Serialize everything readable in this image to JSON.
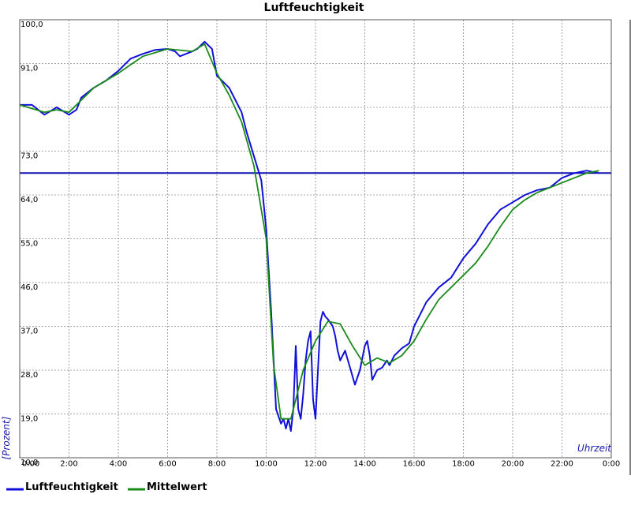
{
  "chart_data": {
    "type": "line",
    "title": "Luftfeuchtigkeit",
    "xlabel": "Uhrzeit",
    "ylabel": "[Prozent]",
    "x_unit": "hours",
    "xlim": [
      0,
      24
    ],
    "ylim": [
      10,
      100
    ],
    "x_ticks": [
      {
        "value": 0,
        "label": "0:00"
      },
      {
        "value": 2,
        "label": "2:00"
      },
      {
        "value": 4,
        "label": "4:00"
      },
      {
        "value": 6,
        "label": "6:00"
      },
      {
        "value": 8,
        "label": "8:00"
      },
      {
        "value": 10,
        "label": "10:00"
      },
      {
        "value": 12,
        "label": "12:00"
      },
      {
        "value": 14,
        "label": "14:00"
      },
      {
        "value": 16,
        "label": "16:00"
      },
      {
        "value": 18,
        "label": "18:00"
      },
      {
        "value": 20,
        "label": "20:00"
      },
      {
        "value": 22,
        "label": "22:00"
      },
      {
        "value": 24,
        "label": "0:00"
      }
    ],
    "y_ticks": [
      {
        "value": 10,
        "label": "10,0"
      },
      {
        "value": 19,
        "label": "19,0"
      },
      {
        "value": 28,
        "label": "28,0"
      },
      {
        "value": 37,
        "label": "37,0"
      },
      {
        "value": 46,
        "label": "46,0"
      },
      {
        "value": 55,
        "label": "55,0"
      },
      {
        "value": 64,
        "label": "64,0"
      },
      {
        "value": 73,
        "label": "73,0"
      },
      {
        "value": 82,
        "label": ""
      },
      {
        "value": 91,
        "label": "91,0"
      },
      {
        "value": 100,
        "label": "100,0"
      }
    ],
    "grid": true,
    "legend_position": "bottom-left",
    "reference_line": {
      "y": 68.5,
      "color": "#1010b0"
    },
    "series": [
      {
        "name": "Luftfeuchtigkeit",
        "color": "#1010d8",
        "x": [
          0,
          0.5,
          1,
          1.5,
          2,
          2.3,
          2.5,
          3,
          3.5,
          4,
          4.5,
          5,
          5.5,
          6,
          6.3,
          6.5,
          7,
          7.2,
          7.5,
          7.8,
          8,
          8.3,
          8.5,
          9,
          9.2,
          9.5,
          9.8,
          10,
          10.2,
          10.4,
          10.6,
          10.7,
          10.8,
          10.9,
          11,
          11.1,
          11.2,
          11.3,
          11.4,
          11.5,
          11.6,
          11.7,
          11.8,
          11.9,
          12.0,
          12.1,
          12.2,
          12.3,
          12.4,
          12.5,
          12.7,
          12.8,
          12.9,
          13.0,
          13.2,
          13.4,
          13.6,
          13.8,
          14.0,
          14.1,
          14.2,
          14.3,
          14.5,
          14.7,
          14.9,
          15.0,
          15.2,
          15.5,
          15.8,
          16.0,
          16.2,
          16.5,
          17,
          17.5,
          18,
          18.5,
          19,
          19.5,
          20,
          20.5,
          21,
          21.5,
          22,
          22.5,
          23,
          23.5
        ],
        "values": [
          82.5,
          82.5,
          80.5,
          82.0,
          80.5,
          81.5,
          84,
          86,
          87.5,
          89.5,
          92,
          93,
          93.8,
          94,
          93.5,
          92.5,
          93.5,
          94,
          95.5,
          94,
          88.5,
          87,
          86,
          81,
          77,
          72,
          67,
          57,
          40,
          20,
          17,
          18,
          16,
          18,
          15.5,
          20,
          33,
          20,
          18,
          23,
          30,
          34,
          36,
          22,
          18,
          28,
          38,
          40,
          39,
          38.5,
          37,
          35,
          32,
          30,
          32,
          28.5,
          25,
          28,
          33,
          34,
          31,
          26,
          28,
          28.5,
          30,
          29,
          31,
          32.5,
          33.5,
          37,
          39,
          42,
          45,
          47,
          51,
          54,
          58,
          61,
          62.5,
          64,
          65,
          65.5,
          67.5,
          68.5,
          69,
          68.5
        ]
      },
      {
        "name": "Mittelwert",
        "color": "#1a8a1a",
        "x": [
          0,
          1,
          1.5,
          2,
          3,
          4,
          5,
          6,
          7,
          7.5,
          8,
          8.5,
          9,
          9.5,
          10,
          10.3,
          10.6,
          11,
          11.5,
          12,
          12.5,
          13,
          13.5,
          14,
          14.5,
          15,
          15.5,
          16,
          16.5,
          17,
          17.5,
          18,
          18.5,
          19,
          19.5,
          20,
          20.5,
          21,
          21.5,
          22,
          22.5,
          23,
          23.5
        ],
        "values": [
          82.5,
          81,
          81.5,
          81,
          86,
          89,
          92.5,
          94,
          93.5,
          95,
          89,
          84.5,
          79,
          70,
          55,
          29,
          18,
          18,
          28,
          34,
          38,
          37.5,
          33,
          29,
          30.5,
          29.5,
          31,
          34,
          38.5,
          42.5,
          45,
          47.5,
          50,
          53.5,
          57.5,
          61,
          63,
          64.5,
          65.5,
          66.5,
          67.5,
          68.5,
          69
        ]
      }
    ]
  }
}
